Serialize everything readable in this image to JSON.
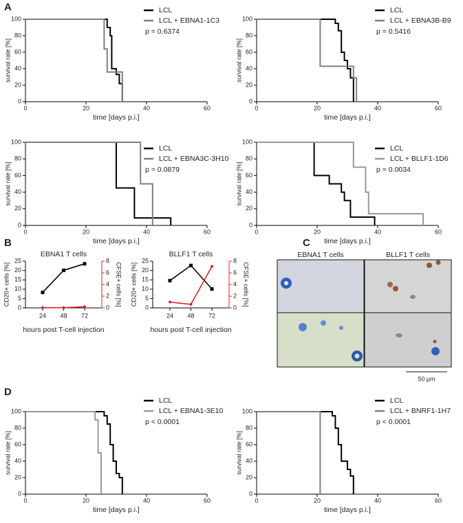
{
  "panel_labels": [
    "A",
    "B",
    "C",
    "D"
  ],
  "micrographs": {
    "titles": [
      "EBNA1 T cells",
      "BLLF1 T cells"
    ],
    "scale_bar": "50 µm"
  },
  "chart_data": [
    {
      "type": "line",
      "xlabel": "time [days p.i.]",
      "ylabel": "survival rate [%]",
      "annotation": "p = 0.6374",
      "xlim": [
        0,
        60
      ],
      "ylim": [
        0,
        100
      ],
      "xticks": [
        0,
        20,
        40,
        60
      ],
      "yticks": [
        0,
        20,
        40,
        60,
        80,
        100
      ],
      "series": [
        {
          "name": "LCL",
          "color": "#000000",
          "x": [
            0,
            27,
            27,
            28,
            28,
            28.5,
            28.5,
            30,
            30,
            31,
            31,
            32,
            32
          ],
          "values": [
            100,
            100,
            90,
            90,
            80,
            80,
            40,
            40,
            33,
            33,
            22,
            22,
            0
          ]
        },
        {
          "name": "LCL + EBNA1-1C3",
          "color": "#7f7f7f",
          "x": [
            0,
            26,
            26,
            27,
            27,
            32,
            32
          ],
          "values": [
            100,
            100,
            64,
            64,
            36,
            36,
            0
          ]
        }
      ]
    },
    {
      "type": "line",
      "xlabel": "time [days p.i.]",
      "ylabel": "survival rate [%]",
      "annotation": "p = 0.5416",
      "xlim": [
        0,
        60
      ],
      "ylim": [
        0,
        100
      ],
      "xticks": [
        0,
        20,
        40,
        60
      ],
      "yticks": [
        0,
        20,
        40,
        60,
        80,
        100
      ],
      "series": [
        {
          "name": "LCL",
          "color": "#000000",
          "x": [
            0,
            26,
            26,
            27,
            27,
            28,
            28,
            29,
            29,
            30,
            30,
            31,
            31,
            32,
            32
          ],
          "values": [
            100,
            100,
            95,
            95,
            86,
            86,
            60,
            60,
            50,
            50,
            40,
            40,
            29,
            29,
            0
          ]
        },
        {
          "name": "LCL + EBNA3B-B9",
          "color": "#7f7f7f",
          "x": [
            0,
            21,
            21,
            32,
            32,
            33,
            33
          ],
          "values": [
            100,
            100,
            43,
            43,
            29,
            29,
            0
          ]
        }
      ]
    },
    {
      "type": "line",
      "xlabel": "time [days p.i.]",
      "ylabel": "survival rate [%]",
      "annotation": "p = 0.0879",
      "xlim": [
        0,
        60
      ],
      "ylim": [
        0,
        100
      ],
      "xticks": [
        0,
        20,
        40,
        60
      ],
      "yticks": [
        0,
        20,
        40,
        60,
        80,
        100
      ],
      "series": [
        {
          "name": "LCL",
          "color": "#000000",
          "x": [
            0,
            30,
            30,
            36,
            36,
            48,
            48
          ],
          "values": [
            100,
            100,
            45,
            45,
            9,
            9,
            0
          ]
        },
        {
          "name": "LCL + EBNA3C-3H10",
          "color": "#7f7f7f",
          "x": [
            0,
            38,
            38,
            42,
            42
          ],
          "values": [
            100,
            100,
            50,
            50,
            0
          ]
        }
      ]
    },
    {
      "type": "line",
      "xlabel": "time [days p.i.]",
      "ylabel": "survival rate [%]",
      "annotation": "p = 0.0034",
      "xlim": [
        0,
        60
      ],
      "ylim": [
        0,
        100
      ],
      "xticks": [
        0,
        20,
        40,
        60
      ],
      "yticks": [
        0,
        20,
        40,
        60,
        80,
        100
      ],
      "series": [
        {
          "name": "LCL",
          "color": "#000000",
          "x": [
            0,
            19,
            19,
            24,
            24,
            28,
            28,
            29,
            29,
            31,
            31,
            39,
            39
          ],
          "values": [
            100,
            100,
            60,
            60,
            50,
            50,
            40,
            40,
            30,
            30,
            10,
            10,
            0
          ]
        },
        {
          "name": "LCL + BLLF1-1D6",
          "color": "#999999",
          "x": [
            0,
            32,
            32,
            36,
            36,
            37,
            37,
            55,
            55
          ],
          "values": [
            100,
            100,
            70,
            70,
            40,
            40,
            14,
            14,
            0
          ]
        }
      ]
    },
    {
      "type": "line",
      "title": "EBNA1 T cells",
      "xlabel": "hours post T-cell injection",
      "ylabel": "CD20+ cells [%]",
      "y2label": "CFSE+ cells [%]",
      "categories": [
        "24",
        "48",
        "72"
      ],
      "ylim": [
        0,
        25
      ],
      "yticks": [
        0,
        5,
        10,
        15,
        20,
        25
      ],
      "y2lim": [
        0,
        8
      ],
      "y2ticks": [
        0,
        2,
        4,
        6,
        8
      ],
      "series": [
        {
          "color": "#000000",
          "marker": "square",
          "values": [
            8.3,
            20.1,
            23.6
          ]
        },
        {
          "color": "#e0202a",
          "marker": "circle",
          "axis": "y2",
          "values": [
            0.05,
            0.03,
            0.2
          ]
        }
      ]
    },
    {
      "type": "line",
      "title": "BLLF1 T cells",
      "xlabel": "hours post T-cell injection",
      "ylabel": "CD20+ cells [%]",
      "y2label": "CFSE+ cells [%]",
      "categories": [
        "24",
        "48",
        "72"
      ],
      "ylim": [
        0,
        25
      ],
      "yticks": [
        0,
        5,
        10,
        15,
        20,
        25
      ],
      "y2lim": [
        0,
        8
      ],
      "y2ticks": [
        0,
        2,
        4,
        6,
        8
      ],
      "series": [
        {
          "color": "#000000",
          "marker": "square",
          "values": [
            14.6,
            22.7,
            10.1
          ]
        },
        {
          "color": "#e0202a",
          "marker": "circle",
          "axis": "y2",
          "values": [
            1.0,
            0.6,
            7.1
          ]
        }
      ]
    },
    {
      "type": "line",
      "xlabel": "time [days p.i.]",
      "ylabel": "survival rate [%]",
      "annotation": "p < 0.0001",
      "xlim": [
        0,
        60
      ],
      "ylim": [
        0,
        100
      ],
      "xticks": [
        0,
        20,
        40,
        60
      ],
      "yticks": [
        0,
        20,
        40,
        60,
        80,
        100
      ],
      "series": [
        {
          "name": "LCL",
          "color": "#000000",
          "x": [
            0,
            26,
            26,
            27,
            27,
            28,
            28,
            29,
            29,
            30,
            30,
            31,
            31,
            32,
            32
          ],
          "values": [
            100,
            100,
            95,
            95,
            85,
            85,
            60,
            60,
            40,
            40,
            25,
            25,
            20,
            20,
            0
          ]
        },
        {
          "name": "LCL + EBNA1-3E10",
          "color": "#999999",
          "x": [
            0,
            23,
            23,
            24,
            24,
            25,
            25
          ],
          "values": [
            100,
            100,
            90,
            90,
            50,
            50,
            0
          ]
        }
      ]
    },
    {
      "type": "line",
      "xlabel": "time [days p.i.]",
      "ylabel": "survival rate [%]",
      "annotation": "p < 0.0001",
      "xlim": [
        0,
        60
      ],
      "ylim": [
        0,
        100
      ],
      "xticks": [
        0,
        20,
        40,
        60
      ],
      "yticks": [
        0,
        20,
        40,
        60,
        80,
        100
      ],
      "series": [
        {
          "name": "LCL",
          "color": "#000000",
          "x": [
            0,
            25,
            25,
            26,
            26,
            27,
            27,
            28,
            28,
            30,
            30,
            31,
            31,
            32,
            32
          ],
          "values": [
            100,
            100,
            95,
            95,
            80,
            80,
            60,
            60,
            40,
            40,
            30,
            30,
            22,
            22,
            0
          ]
        },
        {
          "name": "LCL + BNRF1-1H7",
          "color": "#7f7f7f",
          "x": [
            0,
            21,
            21
          ],
          "values": [
            100,
            100,
            0
          ]
        }
      ]
    }
  ]
}
